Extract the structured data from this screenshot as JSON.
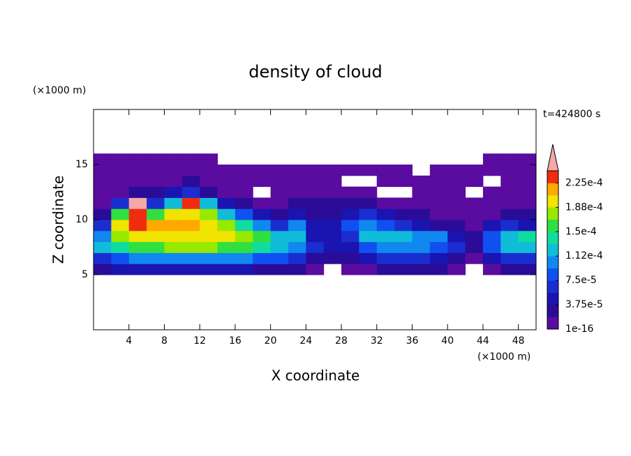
{
  "chart_data": {
    "type": "heatmap",
    "title": "density of cloud",
    "time_label": "t=424800 s",
    "x_label": "X coordinate",
    "y_label": "Z coordinate",
    "x_unit": "(×1000 m)",
    "y_unit": "(×1000 m)",
    "xlim": [
      0,
      50
    ],
    "ylim": [
      0,
      20
    ],
    "xticks": [
      4,
      8,
      12,
      16,
      20,
      24,
      28,
      32,
      36,
      40,
      44,
      48
    ],
    "yticks": [
      5,
      10,
      15
    ],
    "x": [
      1,
      3,
      5,
      7,
      9,
      11,
      13,
      15,
      17,
      19,
      21,
      23,
      25,
      27,
      29,
      31,
      33,
      35,
      37,
      39,
      41,
      43,
      45,
      47,
      49
    ],
    "y": [
      5.5,
      6.5,
      7.5,
      8.5,
      9.5,
      10.5,
      11.5,
      12.5,
      13.5,
      14.5,
      15.5
    ],
    "z": [
      [
        3e-05,
        4e-05,
        4e-05,
        4e-05,
        4e-05,
        4e-05,
        4e-05,
        4e-05,
        4e-05,
        3e-05,
        3e-05,
        2e-05,
        1e-06,
        null,
        1e-06,
        1e-05,
        2e-05,
        2e-05,
        2e-05,
        2e-05,
        1e-05,
        null,
        1e-05,
        2e-05,
        2e-05
      ],
      [
        7e-05,
        9e-05,
        0.0001,
        0.000105,
        0.00011,
        0.00011,
        0.00011,
        0.000105,
        0.0001,
        9e-05,
        8e-05,
        6e-05,
        3e-05,
        2e-05,
        2e-05,
        5e-05,
        6e-05,
        6e-05,
        6e-05,
        5e-05,
        3e-05,
        1e-06,
        5e-05,
        6e-05,
        6e-05
      ],
      [
        0.00012,
        0.00015,
        0.00016,
        0.000165,
        0.00017,
        0.00017,
        0.00017,
        0.000165,
        0.00016,
        0.00015,
        0.00013,
        0.0001,
        6e-05,
        4e-05,
        5e-05,
        9e-05,
        0.00011,
        0.0001,
        0.0001,
        9e-05,
        6e-05,
        3e-05,
        9e-05,
        0.00012,
        0.00013
      ],
      [
        0.00011,
        0.00018,
        0.0002,
        0.0002,
        0.0002,
        0.0002,
        0.000195,
        0.00019,
        0.00018,
        0.00016,
        0.00012,
        0.00013,
        5e-05,
        5e-05,
        7e-05,
        0.00012,
        0.00013,
        0.00012,
        0.00011,
        0.0001,
        5e-05,
        3e-05,
        8e-05,
        0.00013,
        0.00014
      ],
      [
        6e-05,
        0.00019,
        0.00023,
        0.00021,
        0.00021,
        0.00021,
        0.0002,
        0.00018,
        0.00015,
        0.0001,
        6e-05,
        0.00011,
        4e-05,
        4e-05,
        8e-05,
        0.0001,
        9e-05,
        6e-05,
        4e-05,
        3e-05,
        2e-05,
        1e-05,
        4e-05,
        6e-05,
        5e-05
      ],
      [
        3e-05,
        0.00016,
        0.00023,
        0.00016,
        0.00019,
        0.0002,
        0.00018,
        0.00013,
        8e-05,
        4e-05,
        3e-05,
        4e-05,
        3e-05,
        3e-05,
        5e-05,
        6e-05,
        4e-05,
        2e-05,
        2e-05,
        1e-05,
        1e-05,
        1e-06,
        1e-05,
        2e-05,
        2e-05
      ],
      [
        1e-05,
        6e-05,
        0.00025,
        6e-05,
        0.00012,
        0.00023,
        0.00012,
        5e-05,
        2e-05,
        1e-05,
        1e-05,
        2e-05,
        2e-05,
        2e-05,
        3e-05,
        2e-05,
        1e-05,
        1e-05,
        1e-06,
        1e-06,
        1e-06,
        1e-06,
        1e-06,
        1e-05,
        1e-05
      ],
      [
        1e-06,
        1e-05,
        3e-05,
        2e-05,
        4e-05,
        6e-05,
        3e-05,
        1e-05,
        1e-06,
        null,
        1e-06,
        1e-05,
        1e-05,
        1e-05,
        1e-05,
        1e-05,
        null,
        null,
        1e-06,
        1e-06,
        1e-06,
        null,
        1e-06,
        1e-06,
        1e-06
      ],
      [
        1e-06,
        1e-06,
        1e-06,
        1e-06,
        1e-06,
        2e-05,
        1e-06,
        1e-06,
        1e-06,
        1e-06,
        1e-06,
        1e-06,
        2e-06,
        1e-05,
        null,
        null,
        1e-06,
        1e-06,
        1e-06,
        1e-06,
        1e-06,
        1e-06,
        null,
        1e-06,
        1e-06
      ],
      [
        1e-06,
        1e-06,
        1e-06,
        1e-06,
        1e-06,
        1e-06,
        1e-06,
        1e-06,
        1e-06,
        1e-06,
        1e-06,
        1e-06,
        1e-06,
        1e-06,
        1e-06,
        1e-06,
        1e-06,
        1e-06,
        null,
        1e-06,
        1e-06,
        1e-06,
        1e-06,
        1e-06,
        1e-06
      ],
      [
        1e-06,
        1e-06,
        1e-06,
        1e-06,
        1e-06,
        1e-06,
        1e-06,
        null,
        null,
        null,
        null,
        null,
        null,
        null,
        null,
        null,
        null,
        null,
        null,
        null,
        null,
        null,
        1e-06,
        1e-06,
        1e-06
      ]
    ],
    "clim": [
      1e-16,
      0.00024375
    ],
    "colors": [
      "#5a0ca0",
      "#2a0c98",
      "#1a14b0",
      "#1a2ed0",
      "#1050f0",
      "#1088f0",
      "#10bcd8",
      "#10dca0",
      "#30e040",
      "#98e800",
      "#f0e400",
      "#ffa800",
      "#f02c10"
    ],
    "over_color": "#f4a8a8",
    "cticks": [
      1e-16,
      {
        "value": 3.75e-05,
        "label": "3.75e-5"
      },
      {
        "value": 7.5e-05,
        "label": "7.5e-5"
      },
      {
        "value": 0.0001125,
        "label": "1.12e-4"
      },
      {
        "value": 0.00015,
        "label": "1.5e-4"
      },
      {
        "value": 0.0001875,
        "label": "1.88e-4"
      },
      {
        "value": 0.000225,
        "label": "2.25e-4"
      }
    ]
  }
}
